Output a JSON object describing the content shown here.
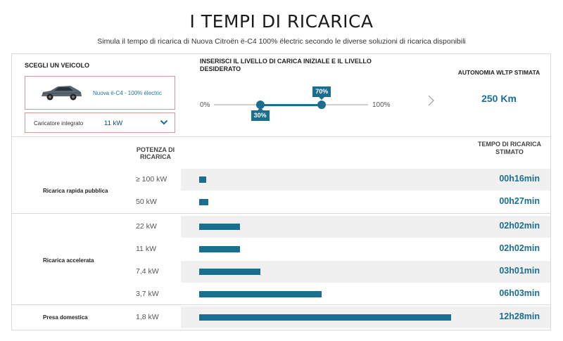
{
  "header": {
    "title": "I TEMPI DI RICARICA",
    "subtitle": "Simula il tempo di ricarica di Nuova Citroën ë-C4 100% ëlectric secondo le diverse soluzioni di ricarica disponibili"
  },
  "vehicle_selector": {
    "title": "SCEGLI UN VEICOLO",
    "vehicle_name": "Nuova ë-C4 - 100% ëlectric",
    "charger_label": "Caricatore integrato",
    "charger_value": "11 kW",
    "icons": {
      "car": "car-image",
      "dropdown": "chevron-down-icon"
    }
  },
  "charge_level": {
    "title": "INSERISCI IL LIVELLO DI CARICA INIZIALE E IL LIVELLO DESIDERATO",
    "min_label": "0%",
    "max_label": "100%",
    "start_label": "30%",
    "end_label": "70%",
    "start_value": 30,
    "end_value": 70
  },
  "autonomy": {
    "title": "AUTONOMIA WLTP STIMATA",
    "value": "250 Km",
    "icon": "chevron-right-icon"
  },
  "table": {
    "power_header": "POTENZA DI RICARICA",
    "time_header": "TEMPO DI RICARICA STIMATO",
    "bar_scale_minutes": 790,
    "groups": [
      {
        "label": "Ricarica rapida pubblica"
      },
      {
        "label": "Ricarica accelerata"
      },
      {
        "label": "Presa domestica"
      }
    ],
    "rows": [
      {
        "power": "≥ 100 kW",
        "time": "00h16min",
        "minutes": 16
      },
      {
        "power": "50 kW",
        "time": "00h27min",
        "minutes": 27
      },
      {
        "power": "22 kW",
        "time": "02h02min",
        "minutes": 122
      },
      {
        "power": "11 kW",
        "time": "02h02min",
        "minutes": 122
      },
      {
        "power": "7,4 kW",
        "time": "03h01min",
        "minutes": 181
      },
      {
        "power": "3,7 kW",
        "time": "06h03min",
        "minutes": 363
      },
      {
        "power": "1,8 kW",
        "time": "12h28min",
        "minutes": 748
      }
    ]
  },
  "colors": {
    "accent": "#1a6e8f",
    "row_background": "#f0f0f0",
    "border": "#d9d9d9"
  }
}
